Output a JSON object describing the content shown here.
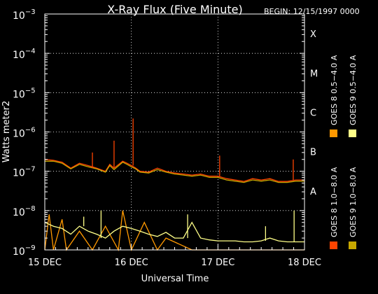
{
  "chart_data": {
    "type": "line",
    "title": "X-Ray Flux (Five Minute)",
    "begin": "BEGIN: 12/15/1997 0000",
    "xlabel": "Universal Time",
    "ylabel": "Watts meter2",
    "x_ticks": [
      "15 DEC",
      "16 DEC",
      "17 DEC",
      "18 DEC"
    ],
    "x_range_days": [
      0,
      3
    ],
    "y_log": true,
    "y_range": [
      1e-09,
      0.001
    ],
    "y_ticks": [
      {
        "value": 0.001,
        "base": "10",
        "exp": "−3"
      },
      {
        "value": 0.0001,
        "base": "10",
        "exp": "−4"
      },
      {
        "value": 1e-05,
        "base": "10",
        "exp": "−5"
      },
      {
        "value": 1e-06,
        "base": "10",
        "exp": "−6"
      },
      {
        "value": 1e-07,
        "base": "10",
        "exp": "−7"
      },
      {
        "value": 1e-08,
        "base": "10",
        "exp": "−8"
      },
      {
        "value": 1e-09,
        "base": "10",
        "exp": "−9"
      }
    ],
    "flare_classes": [
      {
        "label": "X",
        "value": 0.000316
      },
      {
        "label": "M",
        "value": 3.16e-05
      },
      {
        "label": "C",
        "value": 3.16e-06
      },
      {
        "label": "B",
        "value": 3.16e-07
      },
      {
        "label": "A",
        "value": 3.16e-08
      }
    ],
    "grid": true,
    "legend": [
      {
        "label": "GOES 8 1.0−8.0 A",
        "color": "#ff4400"
      },
      {
        "label": "GOES 9 1.0−8.0 A",
        "color": "#c8a800"
      },
      {
        "label": "GOES 8 0.5−4.0 A",
        "color": "#ff9900"
      },
      {
        "label": "GOES 9 0.5−4.0 A",
        "color": "#ffff88"
      }
    ],
    "series": [
      {
        "name": "GOES 8 1.0−8.0 A",
        "color": "#ff4400",
        "x": [
          0,
          0.1,
          0.2,
          0.3,
          0.4,
          0.5,
          0.6,
          0.7,
          0.75,
          0.8,
          0.9,
          0.95,
          1.0,
          1.05,
          1.1,
          1.2,
          1.3,
          1.4,
          1.5,
          1.6,
          1.7,
          1.8,
          1.9,
          2.0,
          2.1,
          2.2,
          2.3,
          2.4,
          2.5,
          2.6,
          2.7,
          2.8,
          2.9,
          3.0
        ],
        "y": [
          2e-07,
          1.9e-07,
          1.7e-07,
          1.2e-07,
          1.6e-07,
          1.4e-07,
          1.2e-07,
          1e-07,
          1.5e-07,
          1.2e-07,
          1.8e-07,
          1.6e-07,
          1.4e-07,
          1.2e-07,
          1e-07,
          9.5e-08,
          1.2e-07,
          1e-07,
          9e-08,
          8.5e-08,
          8e-08,
          8.5e-08,
          7.5e-08,
          7.5e-08,
          6.5e-08,
          6e-08,
          5.5e-08,
          6.5e-08,
          6e-08,
          6.5e-08,
          5.5e-08,
          5.5e-08,
          6e-08,
          6e-08
        ]
      },
      {
        "name": "GOES 9 1.0−8.0 A",
        "color": "#c8a800",
        "x": [
          0,
          0.1,
          0.2,
          0.3,
          0.4,
          0.5,
          0.6,
          0.7,
          0.75,
          0.8,
          0.9,
          0.95,
          1.0,
          1.05,
          1.1,
          1.2,
          1.3,
          1.4,
          1.5,
          1.6,
          1.7,
          1.8,
          1.9,
          2.0,
          2.1,
          2.2,
          2.3,
          2.4,
          2.5,
          2.6,
          2.7,
          2.8,
          2.9,
          3.0
        ],
        "y": [
          1.8e-07,
          1.8e-07,
          1.6e-07,
          1.15e-07,
          1.5e-07,
          1.3e-07,
          1.15e-07,
          9.5e-08,
          1.4e-07,
          1.1e-07,
          1.7e-07,
          1.5e-07,
          1.3e-07,
          1.15e-07,
          9.5e-08,
          9e-08,
          1.1e-07,
          9.5e-08,
          8.5e-08,
          8e-08,
          7.5e-08,
          8e-08,
          7e-08,
          7e-08,
          6e-08,
          5.6e-08,
          5.2e-08,
          6e-08,
          5.6e-08,
          6e-08,
          5.2e-08,
          5.2e-08,
          5.6e-08,
          5.6e-08
        ]
      },
      {
        "name": "GOES 8 0.5−4.0 A",
        "color": "#ff9900",
        "x": [
          0,
          0.05,
          0.1,
          0.2,
          0.25,
          0.4,
          0.55,
          0.7,
          0.85,
          0.9,
          1.0,
          1.15,
          1.3,
          1.4,
          1.7,
          2.0,
          2.3,
          2.6,
          2.9,
          3.0
        ],
        "y": [
          1e-09,
          8e-09,
          1e-09,
          6e-09,
          1e-09,
          3e-09,
          1e-09,
          4e-09,
          1e-09,
          1e-08,
          1e-09,
          5e-09,
          1e-09,
          2e-09,
          1e-09,
          1e-09,
          1e-09,
          1e-09,
          1e-09,
          1e-09
        ]
      },
      {
        "name": "GOES 9 0.5−4.0 A",
        "color": "#ffff88",
        "x": [
          0,
          0.1,
          0.2,
          0.3,
          0.4,
          0.5,
          0.6,
          0.7,
          0.8,
          0.9,
          1.0,
          1.1,
          1.2,
          1.3,
          1.4,
          1.5,
          1.6,
          1.7,
          1.8,
          1.9,
          2.0,
          2.1,
          2.2,
          2.3,
          2.4,
          2.5,
          2.6,
          2.7,
          2.8,
          2.9,
          3.0
        ],
        "y": [
          5e-09,
          4e-09,
          3.5e-09,
          2.5e-09,
          4e-09,
          3e-09,
          2.5e-09,
          2e-09,
          3e-09,
          4e-09,
          3.5e-09,
          3e-09,
          2.5e-09,
          2.2e-09,
          2.8e-09,
          2e-09,
          2e-09,
          5e-09,
          2e-09,
          1.8e-09,
          1.7e-09,
          1.7e-09,
          1.7e-09,
          1.6e-09,
          1.6e-09,
          1.7e-09,
          2e-09,
          1.7e-09,
          1.6e-09,
          1.6e-09,
          1.6e-09
        ]
      }
    ],
    "annotations": [
      {
        "series": 0,
        "x": 1.02,
        "y": 2.2e-06
      },
      {
        "series": 0,
        "x": 0.8,
        "y": 6e-07
      },
      {
        "series": 0,
        "x": 0.55,
        "y": 3e-07
      },
      {
        "series": 0,
        "x": 2.02,
        "y": 2.5e-07
      },
      {
        "series": 0,
        "x": 2.87,
        "y": 2e-07
      },
      {
        "series": 3,
        "x": 2.88,
        "y": 1e-08
      },
      {
        "series": 3,
        "x": 2.55,
        "y": 4e-09
      },
      {
        "series": 3,
        "x": 1.65,
        "y": 8e-09
      },
      {
        "series": 3,
        "x": 0.65,
        "y": 1e-08
      },
      {
        "series": 3,
        "x": 0.45,
        "y": 7e-09
      }
    ]
  }
}
